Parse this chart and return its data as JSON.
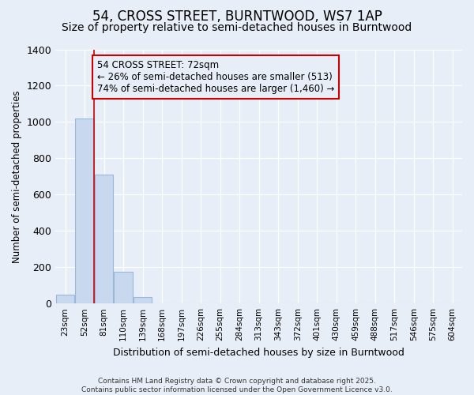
{
  "title": "54, CROSS STREET, BURNTWOOD, WS7 1AP",
  "subtitle": "Size of property relative to semi-detached houses in Burntwood",
  "xlabel": "Distribution of semi-detached houses by size in Burntwood",
  "ylabel": "Number of semi-detached properties",
  "categories": [
    "23sqm",
    "52sqm",
    "81sqm",
    "110sqm",
    "139sqm",
    "168sqm",
    "197sqm",
    "226sqm",
    "255sqm",
    "284sqm",
    "313sqm",
    "343sqm",
    "372sqm",
    "401sqm",
    "430sqm",
    "459sqm",
    "488sqm",
    "517sqm",
    "546sqm",
    "575sqm",
    "604sqm"
  ],
  "values": [
    50,
    1020,
    710,
    175,
    35,
    0,
    0,
    0,
    0,
    0,
    0,
    0,
    0,
    0,
    0,
    0,
    0,
    0,
    0,
    0,
    0
  ],
  "bar_color": "#c8d8ee",
  "bar_edge_color": "#9ab8d8",
  "ylim": [
    0,
    1400
  ],
  "vline_bin_index": 1.5,
  "pct_smaller": 26,
  "pct_smaller_n": 513,
  "pct_larger": 74,
  "pct_larger_n": 1460,
  "vline_color": "#cc0000",
  "annotation_box_color": "#cc0000",
  "background_color": "#e8eef8",
  "footer_text": "Contains HM Land Registry data © Crown copyright and database right 2025.\nContains public sector information licensed under the Open Government Licence v3.0.",
  "grid_color": "#ffffff",
  "title_fontsize": 12,
  "subtitle_fontsize": 10,
  "annotation_fontsize": 8.5
}
